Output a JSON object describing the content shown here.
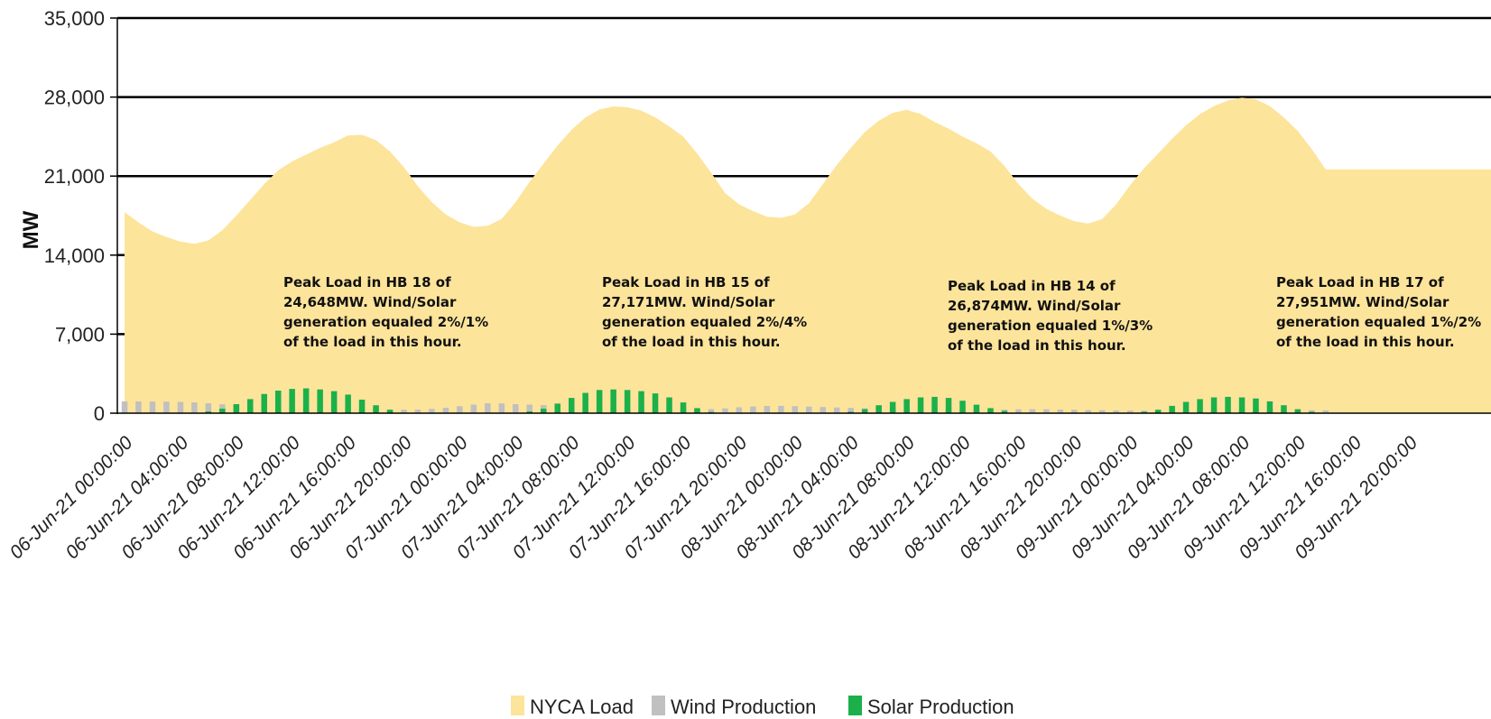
{
  "chart_data": {
    "type": "area",
    "title": "",
    "xlabel": "",
    "ylabel": "MW",
    "ylim": [
      0,
      35000
    ],
    "yticks": [
      "0",
      "7,000",
      "14,000",
      "21,000",
      "28,000",
      "35,000"
    ],
    "grid": "horizontal",
    "legend_position": "bottom",
    "x_tick_labels": [
      "06-Jun-21 00:00:00",
      "06-Jun-21 04:00:00",
      "06-Jun-21 08:00:00",
      "06-Jun-21 12:00:00",
      "06-Jun-21 16:00:00",
      "06-Jun-21 20:00:00",
      "07-Jun-21 00:00:00",
      "07-Jun-21 04:00:00",
      "07-Jun-21 08:00:00",
      "07-Jun-21 12:00:00",
      "07-Jun-21 16:00:00",
      "07-Jun-21 20:00:00",
      "08-Jun-21 00:00:00",
      "08-Jun-21 04:00:00",
      "08-Jun-21 08:00:00",
      "08-Jun-21 12:00:00",
      "08-Jun-21 16:00:00",
      "08-Jun-21 20:00:00",
      "09-Jun-21 00:00:00",
      "09-Jun-21 04:00:00",
      "09-Jun-21 08:00:00",
      "09-Jun-21 12:00:00",
      "09-Jun-21 16:00:00",
      "09-Jun-21 20:00:00"
    ],
    "series": [
      {
        "name": "NYCA Load",
        "type": "area",
        "color": "#FDE49B",
        "values": [
          17800,
          16900,
          16100,
          15600,
          15200,
          15000,
          15300,
          16200,
          17500,
          18900,
          20300,
          21500,
          22300,
          22900,
          23500,
          24000,
          24600,
          24648,
          24200,
          23200,
          21800,
          20100,
          18700,
          17600,
          16900,
          16500,
          16600,
          17200,
          18700,
          20500,
          22100,
          23700,
          25100,
          26200,
          26900,
          27171,
          27100,
          26800,
          26200,
          25400,
          24500,
          23000,
          21300,
          19500,
          18500,
          17900,
          17400,
          17300,
          17600,
          18600,
          20300,
          22000,
          23500,
          24900,
          25900,
          26600,
          26874,
          26500,
          25800,
          25200,
          24500,
          23900,
          23200,
          21900,
          20300,
          19000,
          18100,
          17500,
          17000,
          16800,
          17200,
          18500,
          20200,
          21700,
          23000,
          24300,
          25500,
          26500,
          27200,
          27700,
          27951,
          27800,
          27200,
          26200,
          25000,
          23400,
          21600
        ]
      },
      {
        "name": "Wind Production",
        "type": "bar",
        "color": "#C0C0C0",
        "values": [
          1050,
          1040,
          1030,
          1020,
          1000,
          950,
          880,
          780,
          680,
          600,
          560,
          540,
          520,
          500,
          480,
          470,
          450,
          420,
          380,
          330,
          300,
          320,
          380,
          480,
          620,
          760,
          880,
          860,
          800,
          760,
          720,
          680,
          620,
          560,
          520,
          480,
          440,
          410,
          380,
          350,
          330,
          320,
          360,
          420,
          520,
          600,
          640,
          650,
          620,
          580,
          540,
          500,
          470,
          440,
          420,
          400,
          380,
          360,
          340,
          320,
          300,
          290,
          300,
          320,
          340,
          350,
          340,
          320,
          300,
          280,
          260,
          240,
          230,
          220,
          220,
          230,
          240,
          260,
          280,
          300,
          320,
          340,
          330,
          310,
          290,
          270,
          250
        ]
      },
      {
        "name": "Solar Production",
        "type": "bar",
        "color": "#1BB04A",
        "values": [
          0,
          0,
          0,
          0,
          0,
          20,
          150,
          400,
          800,
          1250,
          1700,
          2000,
          2150,
          2200,
          2100,
          1950,
          1650,
          1200,
          700,
          300,
          50,
          0,
          0,
          0,
          0,
          0,
          0,
          0,
          30,
          150,
          400,
          850,
          1350,
          1800,
          2050,
          2100,
          2050,
          1950,
          1750,
          1400,
          950,
          450,
          100,
          0,
          0,
          0,
          0,
          0,
          0,
          0,
          0,
          20,
          120,
          350,
          700,
          1000,
          1250,
          1400,
          1450,
          1350,
          1100,
          750,
          450,
          200,
          50,
          0,
          0,
          0,
          0,
          0,
          0,
          0,
          30,
          120,
          300,
          650,
          1000,
          1250,
          1400,
          1450,
          1400,
          1300,
          1050,
          700,
          350,
          120,
          20
        ]
      }
    ],
    "annotations": [
      {
        "lines": [
          "Peak Load in HB 18 of",
          "24,648MW. Wind/Solar",
          "generation equaled 2%/1%",
          "of the load in this hour."
        ]
      },
      {
        "lines": [
          "Peak Load in HB 15 of",
          "27,171MW. Wind/Solar",
          "generation equaled 2%/4%",
          "of the load in this hour."
        ]
      },
      {
        "lines": [
          "Peak Load in HB 14 of",
          "26,874MW. Wind/Solar",
          "generation equaled 1%/3%",
          "of the load in this hour."
        ]
      },
      {
        "lines": [
          "Peak Load in HB 17 of",
          "27,951MW. Wind/Solar",
          "generation equaled 1%/2%",
          "of the load in this hour."
        ]
      }
    ],
    "legend": [
      "NYCA Load",
      "Wind Production",
      "Solar Production"
    ]
  }
}
